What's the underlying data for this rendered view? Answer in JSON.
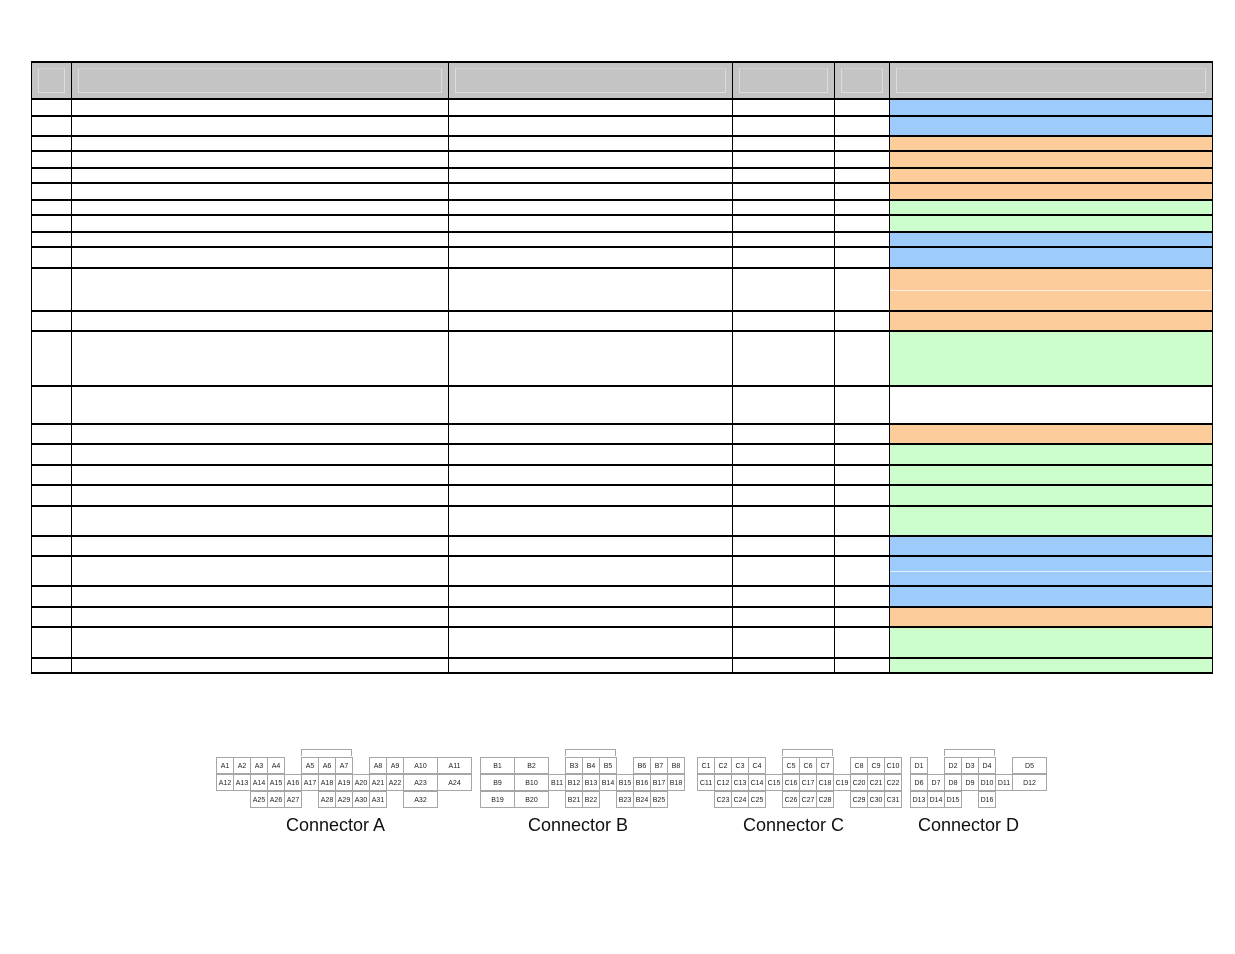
{
  "table": {
    "header": [
      "",
      "",
      "",
      "",
      "",
      ""
    ],
    "rows": [
      {
        "h": 17,
        "color": "blue"
      },
      {
        "h": 20,
        "color": "blue"
      },
      {
        "h": 15,
        "color": "orange"
      },
      {
        "h": 17,
        "color": "orange"
      },
      {
        "h": 15,
        "color": "orange"
      },
      {
        "h": 17,
        "color": "orange"
      },
      {
        "h": 15,
        "color": "green"
      },
      {
        "h": 17,
        "color": "green"
      },
      {
        "h": 15,
        "color": "blue"
      },
      {
        "h": 21,
        "color": "blue"
      },
      {
        "h": 43,
        "color": "orange",
        "split": true
      },
      {
        "h": 20,
        "color": "orange"
      },
      {
        "h": 55,
        "color": "green"
      },
      {
        "h": 38,
        "color": "white"
      },
      {
        "h": 20,
        "color": "orange"
      },
      {
        "h": 21,
        "color": "green"
      },
      {
        "h": 20,
        "color": "green"
      },
      {
        "h": 21,
        "color": "green"
      },
      {
        "h": 30,
        "color": "green"
      },
      {
        "h": 20,
        "color": "blue"
      },
      {
        "h": 30,
        "color": "blue",
        "split": true
      },
      {
        "h": 21,
        "color": "blue"
      },
      {
        "h": 20,
        "color": "orange"
      },
      {
        "h": 31,
        "color": "green"
      },
      {
        "h": 15,
        "color": "green"
      }
    ]
  },
  "connectors": [
    {
      "label": "Connector A",
      "rows": [
        [
          "A1",
          "A2",
          "A3",
          "A4",
          "",
          "A5",
          "A6",
          "A7",
          "",
          "A8",
          "A9",
          "A10",
          "A11"
        ],
        [
          "A12",
          "A13",
          "A14",
          "A15",
          "A16",
          "A17",
          "A18",
          "A19",
          "A20",
          "A21",
          "A22",
          "A23",
          "A24"
        ],
        [
          "",
          "",
          "A25",
          "A26",
          "A27",
          "",
          "A28",
          "A29",
          "A30",
          "A31",
          "",
          "A32",
          ""
        ]
      ]
    },
    {
      "label": "Connector B",
      "rows": [
        [
          "B1",
          "B2",
          "",
          "B3",
          "B4",
          "B5",
          "",
          "B6",
          "B7",
          "B8"
        ],
        [
          "B9",
          "B10",
          "B11",
          "B12",
          "B13",
          "B14",
          "B15",
          "B16",
          "B17",
          "B18"
        ],
        [
          "B19",
          "B20",
          "",
          "B21",
          "B22",
          "",
          "B23",
          "B24",
          "B25",
          ""
        ]
      ]
    },
    {
      "label": "Connector C",
      "rows": [
        [
          "C1",
          "C2",
          "C3",
          "C4",
          "",
          "C5",
          "C6",
          "C7",
          "",
          "C8",
          "C9",
          "C10"
        ],
        [
          "C11",
          "C12",
          "C13",
          "C14",
          "C15",
          "C16",
          "C17",
          "C18",
          "C19",
          "C20",
          "C21",
          "C22"
        ],
        [
          "",
          "C23",
          "C24",
          "C25",
          "",
          "C26",
          "C27",
          "C28",
          "",
          "C29",
          "C30",
          "C31"
        ]
      ]
    },
    {
      "label": "Connector D",
      "rows": [
        [
          "D1",
          "",
          "D2",
          "D3",
          "D4",
          "",
          "D5"
        ],
        [
          "D6",
          "D7",
          "D8",
          "D9",
          "D10",
          "D11",
          "D12"
        ],
        [
          "D13",
          "D14",
          "D15",
          "",
          "D16",
          "",
          ""
        ]
      ]
    }
  ]
}
